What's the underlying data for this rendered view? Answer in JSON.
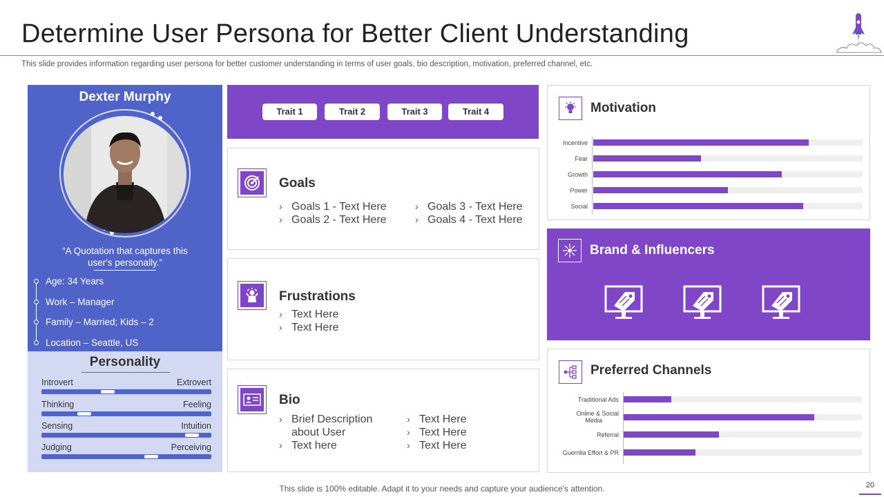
{
  "slide": {
    "title": "Determine User Persona for Better Client Understanding",
    "subtitle": "This slide provides information regarding user persona for better customer understanding in terms of user goals, bio description, motivation, preferred channel, etc.",
    "footer": "This slide is 100% editable. Adapt it to your needs and capture your audience's attention.",
    "page_number": "20"
  },
  "profile": {
    "name": "Dexter Murphy",
    "quote_line1": "“A Quotation that captures this",
    "quote_line2": "user's personally.”",
    "facts": [
      "Age: 34 Years",
      "Work – Manager",
      "Family – Married; Kids – 2",
      "Location – Seattle, US"
    ]
  },
  "personality": {
    "title": "Personality",
    "scales": [
      {
        "left": "Introvert",
        "right": "Extrovert",
        "level": 0.38
      },
      {
        "left": "Thinking",
        "right": "Feeling",
        "level": 0.23
      },
      {
        "left": "Sensing",
        "right": "Intuition",
        "level": 0.92
      },
      {
        "left": "Judging",
        "right": "Perceiving",
        "level": 0.66
      }
    ]
  },
  "traits": [
    "Trait 1",
    "Trait 2",
    "Trait 3",
    "Trait 4"
  ],
  "goals": {
    "title": "Goals",
    "items": [
      "Goals 1 - Text Here",
      "Goals 2 - Text Here",
      "Goals 3 - Text Here",
      "Goals 4 - Text Here"
    ]
  },
  "frustrations": {
    "title": "Frustrations",
    "items": [
      "Text Here",
      "Text Here"
    ]
  },
  "bio": {
    "title": "Bio",
    "left_line1": "Brief Description",
    "left_line2": "about User",
    "left_line3": "Text here",
    "right": [
      "Text Here",
      "Text Here",
      "Text Here"
    ]
  },
  "motivation": {
    "title": "Motivation",
    "icon": "lightbulb-icon",
    "bars": [
      {
        "label": "Incentive",
        "value": 0.8
      },
      {
        "label": "Fear",
        "value": 0.4
      },
      {
        "label": "Growth",
        "value": 0.7
      },
      {
        "label": "Power",
        "value": 0.5
      },
      {
        "label": "Social",
        "value": 0.78
      }
    ]
  },
  "brand": {
    "title": "Brand & Influencers",
    "icon": "network-icon"
  },
  "channels": {
    "title": "Preferred Channels",
    "icon": "channels-icon",
    "bars": [
      {
        "label_line1": "Traditional Ads",
        "label_line2": "",
        "value": 0.2
      },
      {
        "label_line1": "Online & Social",
        "label_line2": "Media",
        "value": 0.8
      },
      {
        "label_line1": "Referral",
        "label_line2": "",
        "value": 0.4
      },
      {
        "label_line1": "Guerrilla Effort & PR",
        "label_line2": "",
        "value": 0.3
      }
    ]
  },
  "colors": {
    "purple": "#7f47c8",
    "blue": "#4f63c9",
    "light_blue": "#d3d9f3"
  }
}
